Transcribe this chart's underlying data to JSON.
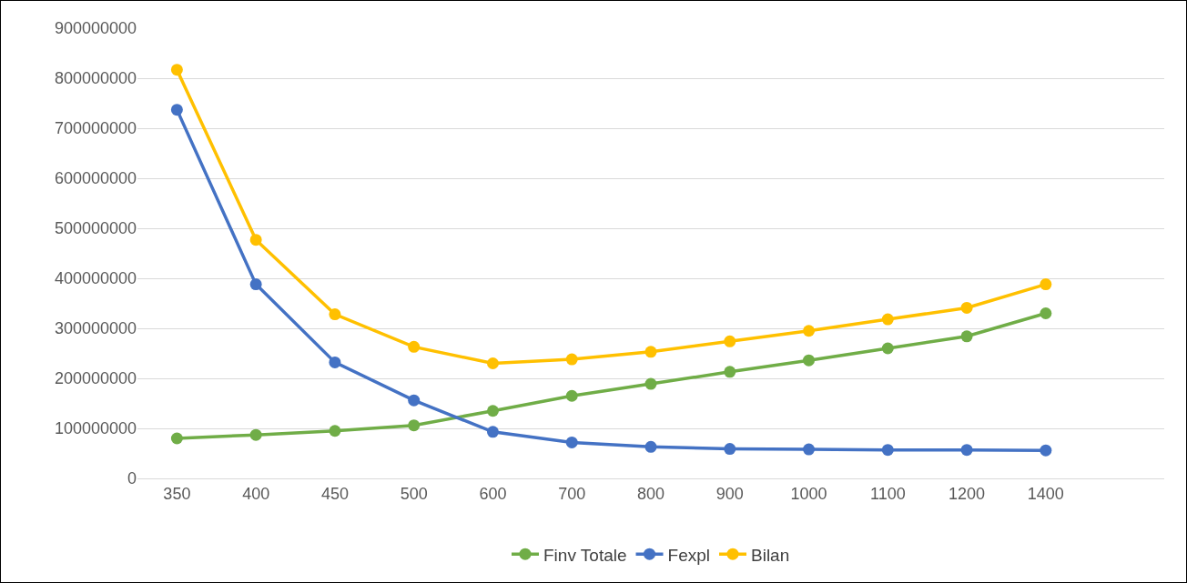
{
  "chart_data": {
    "type": "line",
    "categories": [
      "350",
      "400",
      "450",
      "500",
      "600",
      "700",
      "800",
      "900",
      "1000",
      "1100",
      "1200",
      "1400",
      null
    ],
    "series": [
      {
        "name": "Finv Totale",
        "color": "#70ad47",
        "values": [
          80000000,
          87000000,
          95000000,
          106000000,
          135000000,
          165000000,
          189000000,
          213000000,
          236000000,
          260000000,
          284000000,
          330000000,
          null
        ]
      },
      {
        "name": "Fexpl",
        "color": "#4472c4",
        "values": [
          737000000,
          388000000,
          232000000,
          156000000,
          93000000,
          72000000,
          63000000,
          59000000,
          58000000,
          57000000,
          57000000,
          56000000,
          null
        ]
      },
      {
        "name": "Bilan",
        "color": "#ffc000",
        "values": [
          817000000,
          477000000,
          328000000,
          263000000,
          230000000,
          238000000,
          253000000,
          274000000,
          295000000,
          318000000,
          341000000,
          388000000,
          null
        ]
      }
    ],
    "ylim": [
      0,
      900000000
    ],
    "yticks": [
      0,
      100000000,
      200000000,
      300000000,
      400000000,
      500000000,
      600000000,
      700000000,
      800000000,
      900000000
    ],
    "grid": "y",
    "legend": "bottom",
    "marker": "circle",
    "line_style": "solid"
  }
}
